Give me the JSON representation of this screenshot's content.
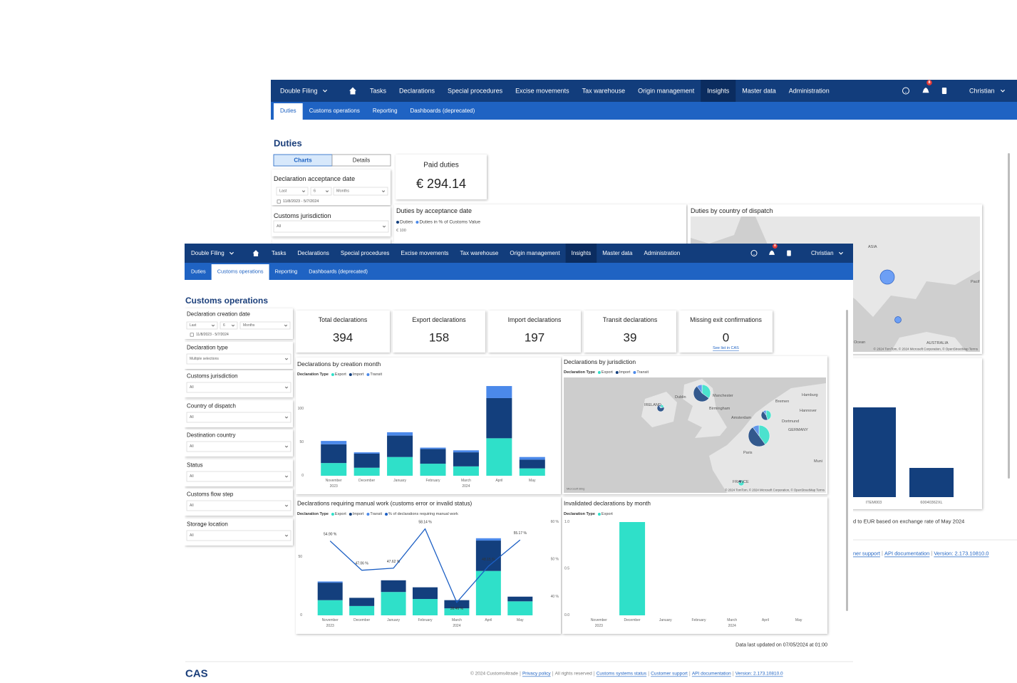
{
  "back": {
    "nav": {
      "project": "Double Filing",
      "items": [
        "Tasks",
        "Declarations",
        "Special procedures",
        "Excise movements",
        "Tax warehouse",
        "Origin management",
        "Insights",
        "Master data",
        "Administration"
      ],
      "active": 6,
      "badge": "8",
      "user": "Christian"
    },
    "subnav": {
      "items": [
        "Duties",
        "Customs operations",
        "Reporting",
        "Dashboards (deprecated)"
      ],
      "active": 0
    },
    "title": "Duties",
    "tabs": {
      "items": [
        "Charts",
        "Details"
      ],
      "active": 0
    },
    "filters": [
      {
        "label": "Declaration acceptance date",
        "period": [
          "Last",
          "6",
          "Months"
        ],
        "range": "11/8/2023 - 5/7/2024"
      },
      {
        "label": "Customs jurisdiction",
        "value": "All"
      }
    ],
    "paid_duties": {
      "label": "Paid duties",
      "value": "€ 294.14"
    },
    "acceptance_chart": {
      "title": "Duties by acceptance date",
      "legend": [
        {
          "name": "Duties",
          "color": "#133f7d"
        },
        {
          "name": "Duties in % of Customs Value",
          "color": "#4b89ea"
        }
      ],
      "tick": "€ 100"
    },
    "dispatch_map": {
      "title": "Duties by country of dispatch",
      "labels": [
        "ASIA",
        "Pacif",
        "Ocean",
        "AUSTRALIA"
      ],
      "credit": "© 2024 TomTom, © 2024 Microsoft Corporation, © OpenStreetMap  Terms"
    },
    "item_chart": {
      "categories": [
        "ITEM003",
        "60040362XL"
      ],
      "values": [
        126,
        41
      ],
      "color": "#133f7d",
      "ylim": [
        0,
        130
      ]
    },
    "note": "d to EUR based on exchange rate of May 2024",
    "footer": [
      {
        "text": "ner support",
        "link": true
      },
      {
        "text": "API documentation",
        "link": true
      },
      {
        "text": "Version: 2.173.10810.0",
        "link": true
      }
    ]
  },
  "front": {
    "nav": {
      "project": "Double Filing",
      "items": [
        "Tasks",
        "Declarations",
        "Special procedures",
        "Excise movements",
        "Tax warehouse",
        "Origin management",
        "Insights",
        "Master data",
        "Administration"
      ],
      "active": 6,
      "badge": "8",
      "user": "Christian"
    },
    "subnav": {
      "items": [
        "Duties",
        "Customs operations",
        "Reporting",
        "Dashboards (deprecated)"
      ],
      "active": 1
    },
    "title": "Customs operations",
    "filters": [
      {
        "label": "Declaration creation date",
        "period": [
          "Last",
          "6",
          "Months"
        ],
        "range": "11/8/2023 - 5/7/2024"
      },
      {
        "label": "Declaration type",
        "value": "Multiple selections"
      },
      {
        "label": "Customs jurisdiction",
        "value": "All"
      },
      {
        "label": "Country of dispatch",
        "value": "All"
      },
      {
        "label": "Destination country",
        "value": "All"
      },
      {
        "label": "Status",
        "value": "All"
      },
      {
        "label": "Customs flow step",
        "value": "All"
      },
      {
        "label": "Storage location",
        "value": "All"
      }
    ],
    "kpis": [
      {
        "label": "Total declarations",
        "value": 394
      },
      {
        "label": "Export declarations",
        "value": 158
      },
      {
        "label": "Import declarations",
        "value": 197
      },
      {
        "label": "Transit declarations",
        "value": 39
      },
      {
        "label": "Missing exit confirmations",
        "value": 0,
        "link": "See list in CAS"
      }
    ],
    "creation_chart": {
      "type": "bar",
      "title": "Declarations by creation month",
      "legend_title": "Declaration Type",
      "categories": [
        "November",
        "December",
        "January",
        "February",
        "March",
        "April",
        "May"
      ],
      "category_years": [
        "2023",
        null,
        null,
        null,
        "2024",
        null,
        null
      ],
      "series": [
        {
          "name": "Export",
          "color": "#2fe0c9",
          "values": [
            19,
            12,
            28,
            18,
            14,
            56,
            11
          ]
        },
        {
          "name": "Import",
          "color": "#133f7d",
          "values": [
            28,
            21,
            32,
            22,
            21,
            60,
            13
          ]
        },
        {
          "name": "Transit",
          "color": "#4b89ea",
          "values": [
            5,
            2,
            5,
            2,
            3,
            18,
            4
          ]
        }
      ],
      "ylim": [
        0,
        140
      ],
      "yticks": [
        0,
        50,
        100
      ]
    },
    "jurisdiction_map": {
      "title": "Declarations by jurisdiction",
      "legend_title": "Declaration Type",
      "legend": [
        {
          "name": "Export",
          "color": "#2fe0c9"
        },
        {
          "name": "Import",
          "color": "#133f7d"
        },
        {
          "name": "Transit",
          "color": "#4b89ea"
        }
      ],
      "labels": [
        "IRELAND",
        "Dublin",
        "Manchester",
        "Birmingham",
        "Amsterdam",
        "Bremen",
        "Hamburg",
        "Hannover",
        "Dortmund",
        "GERMANY",
        "Paris",
        "FRANCE",
        "Muni"
      ],
      "brand": "Microsoft Bing",
      "credit": "© 2024 TomTom, © 2024 Microsoft Corporation, © OpenStreetMap  Terms"
    },
    "manual_chart": {
      "type": "bar",
      "title": "Declarations requiring manual work (customs error or invalid status)",
      "legend_title": "Declaration Type",
      "categories": [
        "November",
        "December",
        "January",
        "February",
        "March",
        "April",
        "May"
      ],
      "category_years": [
        "2023",
        null,
        null,
        null,
        "2024",
        null,
        null
      ],
      "series": [
        {
          "name": "Export",
          "color": "#2fe0c9",
          "values": [
            13,
            8,
            20,
            14,
            6,
            38,
            12
          ]
        },
        {
          "name": "Import",
          "color": "#133f7d",
          "values": [
            15,
            7,
            10,
            10,
            7,
            26,
            4
          ]
        },
        {
          "name": "Transit",
          "color": "#4b89ea",
          "values": [
            1,
            0,
            0,
            0,
            0,
            2,
            0
          ]
        },
        {
          "name": "% of declarations requiring manual work",
          "type": "line",
          "axis": "y2",
          "color": "#1c5fc4",
          "values": [
            54.9,
            47.06,
            47.62,
            58.14,
            38.46,
            48.15,
            55.17
          ],
          "value_labels": [
            "54.90 %",
            "47.06 %",
            "47.62 %",
            "58.14 %",
            "38.46 %",
            "48.15 %",
            "55.17 %"
          ]
        }
      ],
      "ylim": [
        0,
        80
      ],
      "yticks": [
        0,
        50
      ],
      "y2lim": [
        35,
        60
      ],
      "y2ticks": [
        {
          "value": 40,
          "label": "40 %"
        },
        {
          "value": 50,
          "label": "50 %"
        },
        {
          "value": 60,
          "label": "60 %"
        }
      ]
    },
    "invalid_chart": {
      "type": "bar",
      "title": "Invalidated declarations by month",
      "legend_title": "Declaration Type",
      "categories": [
        "November",
        "December",
        "January",
        "February",
        "March",
        "April",
        "May"
      ],
      "category_years": [
        "2023",
        null,
        null,
        null,
        "2024",
        null,
        null
      ],
      "series": [
        {
          "name": "Export",
          "color": "#2fe0c9",
          "values": [
            0,
            1,
            0,
            0,
            0,
            0,
            0
          ]
        }
      ],
      "ylim": [
        0,
        1
      ],
      "yticks": [
        {
          "value": 0,
          "label": "0.0"
        },
        {
          "value": 0.5,
          "label": "0.5"
        },
        {
          "value": 1,
          "label": "1.0"
        }
      ]
    },
    "updated": "Data last updated on 07/05/2024 at 01:00",
    "logo": "CAS",
    "footer": [
      {
        "text": "© 2024 Customs4trade",
        "link": false
      },
      {
        "text": "Privacy policy",
        "link": true
      },
      {
        "text": "All rights reserved",
        "link": false
      },
      {
        "text": "Customs systems status",
        "link": true
      },
      {
        "text": "Customer support",
        "link": true
      },
      {
        "text": "API documentation",
        "link": true
      },
      {
        "text": "Version: 2.173.10810.0",
        "link": true
      }
    ]
  }
}
